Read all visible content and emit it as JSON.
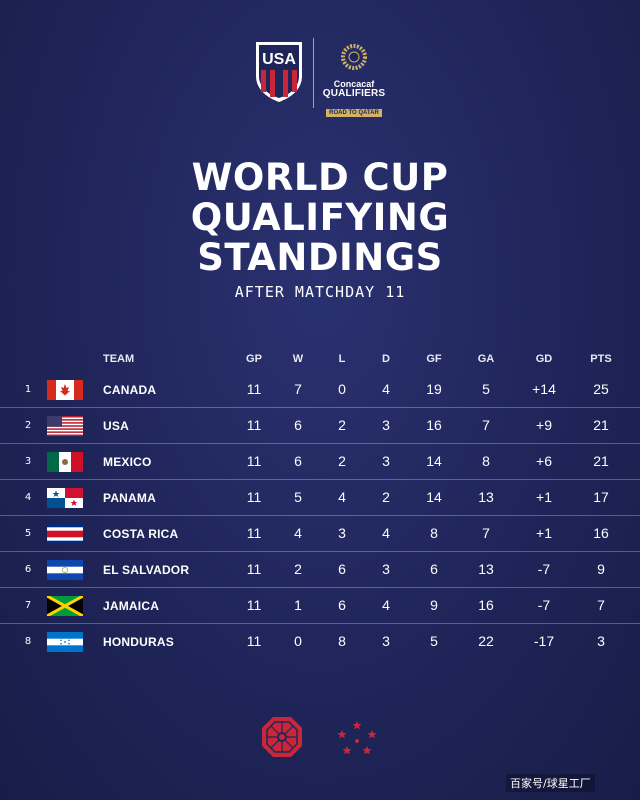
{
  "headline": {
    "lines": [
      "WORLD CUP",
      "QUALIFYING",
      "STANDINGS"
    ],
    "subtitle": "AFTER MATCHDAY 11"
  },
  "logos": {
    "usa_letters": "USA",
    "partner_brand": "Concacaf",
    "partner_title": "QUALIFIERS",
    "partner_tag": "ROAD TO QATAR"
  },
  "table": {
    "headers": {
      "team": "TEAM",
      "gp": "GP",
      "w": "W",
      "l": "L",
      "d": "D",
      "gf": "GF",
      "ga": "GA",
      "gd": "GD",
      "pts": "PTS"
    },
    "rows": [
      {
        "rank": "1",
        "team": "CANADA",
        "flag": "canada-flag-icon",
        "gp": "11",
        "w": "7",
        "l": "0",
        "d": "4",
        "gf": "19",
        "ga": "5",
        "gd": "+14",
        "pts": "25"
      },
      {
        "rank": "2",
        "team": "USA",
        "flag": "usa-flag-icon",
        "gp": "11",
        "w": "6",
        "l": "2",
        "d": "3",
        "gf": "16",
        "ga": "7",
        "gd": "+9",
        "pts": "21"
      },
      {
        "rank": "3",
        "team": "MEXICO",
        "flag": "mexico-flag-icon",
        "gp": "11",
        "w": "6",
        "l": "2",
        "d": "3",
        "gf": "14",
        "ga": "8",
        "gd": "+6",
        "pts": "21"
      },
      {
        "rank": "4",
        "team": "PANAMA",
        "flag": "panama-flag-icon",
        "gp": "11",
        "w": "5",
        "l": "4",
        "d": "2",
        "gf": "14",
        "ga": "13",
        "gd": "+1",
        "pts": "17"
      },
      {
        "rank": "5",
        "team": "COSTA RICA",
        "flag": "costa-rica-flag-icon",
        "gp": "11",
        "w": "4",
        "l": "3",
        "d": "4",
        "gf": "8",
        "ga": "7",
        "gd": "+1",
        "pts": "16"
      },
      {
        "rank": "6",
        "team": "EL SALVADOR",
        "flag": "el-salvador-flag-icon",
        "gp": "11",
        "w": "2",
        "l": "6",
        "d": "3",
        "gf": "6",
        "ga": "13",
        "gd": "-7",
        "pts": "9"
      },
      {
        "rank": "7",
        "team": "JAMAICA",
        "flag": "jamaica-flag-icon",
        "gp": "11",
        "w": "1",
        "l": "6",
        "d": "4",
        "gf": "9",
        "ga": "16",
        "gd": "-7",
        "pts": "7"
      },
      {
        "rank": "8",
        "team": "HONDURAS",
        "flag": "honduras-flag-icon",
        "gp": "11",
        "w": "0",
        "l": "8",
        "d": "3",
        "gf": "5",
        "ga": "22",
        "gd": "-17",
        "pts": "3"
      }
    ]
  },
  "watermark": "百家号/球星工厂",
  "colors": {
    "background": "#1f2559",
    "accent_red": "#c8273a",
    "gold": "#d2b264"
  }
}
